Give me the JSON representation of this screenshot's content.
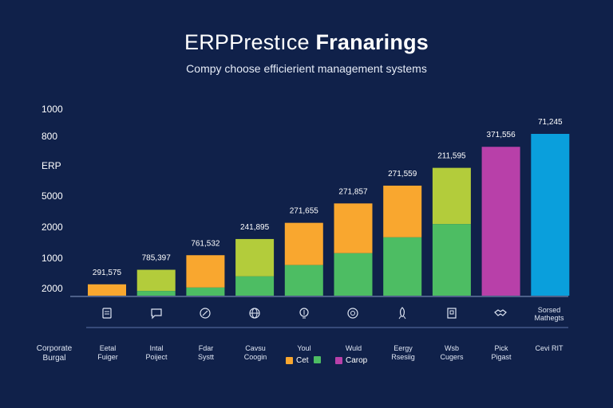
{
  "title_part1": "ERPPrestıce ",
  "title_part2": "Franarings",
  "subtitle": "Compy choose efficierient management systems",
  "y_ticks": [
    "1000",
    "800",
    "ERP",
    "5000",
    "2000",
    "1000",
    "2000"
  ],
  "icons": [
    "document-icon",
    "chat-icon",
    "pen-icon",
    "globe-icon",
    "lightbulb-icon",
    "gear-icon",
    "rocket-icon",
    "clipboard-icon",
    "handshake-icon"
  ],
  "header_label": "Corporate\nBurgal",
  "categories": [
    "Eetal\nFuiger",
    "Intal\nPoiject",
    "Fdar\nSystt",
    "Cavsu\nCoogin",
    "Youl",
    "Wuld",
    "Eergy\nRsesiig",
    "Wsb\nCugers",
    "Pick\nPigast",
    "Cevi RIT"
  ],
  "side_label": "Sorsed\nMathegts",
  "legend": [
    {
      "label": "Cet",
      "color": "#f9a72f"
    },
    {
      "label": "",
      "color": "#4dbd63"
    },
    {
      "label": "Carop",
      "color": "#b840a9"
    }
  ],
  "chart_data": {
    "type": "bar",
    "title": "ERPPrestıce Franarings",
    "subtitle": "Compy choose efficierient management systems",
    "categories": [
      "Eetal Fuiger",
      "Intal Poiject",
      "Fdar Systt",
      "Cavsu Coogin",
      "Youl",
      "Wuld",
      "Eergy Rsesiig",
      "Wsb Cugers",
      "Pick Pigast",
      "Cevi RIT"
    ],
    "value_labels": [
      "291,575",
      "785,397",
      "761,532",
      "241,895",
      "271,655",
      "271,857",
      "271,559",
      "211,595",
      "371,556",
      "71,245"
    ],
    "stack_fraction": [
      {
        "green": 0.0,
        "top": 1.0,
        "top_color": "#f9a72f"
      },
      {
        "green": 0.18,
        "top": 0.82,
        "top_color": "#b3cc3b"
      },
      {
        "green": 0.2,
        "top": 0.8,
        "top_color": "#f9a72f"
      },
      {
        "green": 0.34,
        "top": 0.66,
        "top_color": "#b3cc3b"
      },
      {
        "green": 0.42,
        "top": 0.58,
        "top_color": "#f9a72f"
      },
      {
        "green": 0.46,
        "top": 0.54,
        "top_color": "#f9a72f"
      },
      {
        "green": 0.53,
        "top": 0.47,
        "top_color": "#f9a72f"
      },
      {
        "green": 0.56,
        "top": 0.44,
        "top_color": "#b3cc3b"
      },
      {
        "green": 0.0,
        "top": 1.0,
        "top_color": "#b840a9"
      },
      {
        "green": 0.0,
        "top": 1.0,
        "top_color": "#0a9fdc"
      }
    ],
    "relative_height": [
      0.07,
      0.16,
      0.25,
      0.35,
      0.45,
      0.57,
      0.68,
      0.79,
      0.92,
      1.0
    ],
    "green_color": "#4dbd63",
    "grid": false
  }
}
